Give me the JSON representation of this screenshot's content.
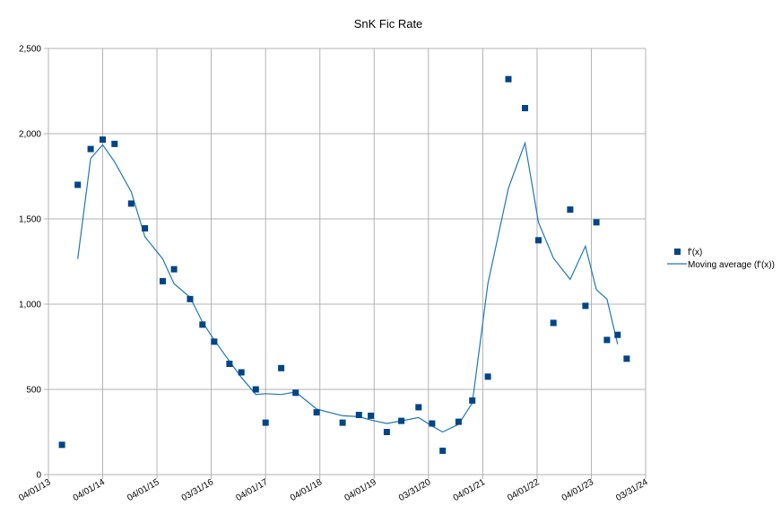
{
  "chart_data": {
    "type": "scatter",
    "title": "SnK Fic Rate",
    "xlabel": "",
    "ylabel": "",
    "x_axis": {
      "kind": "date",
      "min": "2013-04-01",
      "max": "2024-03-31",
      "ticks": [
        {
          "date": "2013-04-01",
          "label": "04/01/13"
        },
        {
          "date": "2014-04-01",
          "label": "04/01/14"
        },
        {
          "date": "2015-04-01",
          "label": "04/01/15"
        },
        {
          "date": "2016-03-31",
          "label": "03/31/16"
        },
        {
          "date": "2017-04-01",
          "label": "04/01/17"
        },
        {
          "date": "2018-04-01",
          "label": "04/01/18"
        },
        {
          "date": "2019-04-01",
          "label": "04/01/19"
        },
        {
          "date": "2020-03-31",
          "label": "03/31/20"
        },
        {
          "date": "2021-04-01",
          "label": "04/01/21"
        },
        {
          "date": "2022-04-01",
          "label": "04/01/22"
        },
        {
          "date": "2023-04-01",
          "label": "04/01/23"
        },
        {
          "date": "2024-03-31",
          "label": "03/31/24"
        }
      ]
    },
    "y_axis": {
      "min": 0,
      "max": 2500,
      "ticks": [
        {
          "value": 0,
          "label": "0"
        },
        {
          "value": 500,
          "label": "500"
        },
        {
          "value": 1000,
          "label": "1,000"
        },
        {
          "value": 1500,
          "label": "1,500"
        },
        {
          "value": 2000,
          "label": "2,000"
        },
        {
          "value": 2500,
          "label": "2,500"
        }
      ]
    },
    "grid": true,
    "legend_position": "right",
    "series": [
      {
        "name": "f'(x)",
        "style": "markers",
        "color": "#004586",
        "points": [
          {
            "x": "2013-07-01",
            "y": 175
          },
          {
            "x": "2013-10-15",
            "y": 1700
          },
          {
            "x": "2014-01-10",
            "y": 1910
          },
          {
            "x": "2014-04-01",
            "y": 1965
          },
          {
            "x": "2014-06-20",
            "y": 1940
          },
          {
            "x": "2014-10-10",
            "y": 1590
          },
          {
            "x": "2015-01-10",
            "y": 1445
          },
          {
            "x": "2015-05-10",
            "y": 1135
          },
          {
            "x": "2015-07-25",
            "y": 1205
          },
          {
            "x": "2015-11-10",
            "y": 1030
          },
          {
            "x": "2016-02-01",
            "y": 880
          },
          {
            "x": "2016-04-20",
            "y": 780
          },
          {
            "x": "2016-08-01",
            "y": 650
          },
          {
            "x": "2016-10-20",
            "y": 600
          },
          {
            "x": "2017-01-25",
            "y": 500
          },
          {
            "x": "2017-04-01",
            "y": 305
          },
          {
            "x": "2017-07-15",
            "y": 625
          },
          {
            "x": "2017-10-20",
            "y": 480
          },
          {
            "x": "2018-03-10",
            "y": 365
          },
          {
            "x": "2018-09-01",
            "y": 305
          },
          {
            "x": "2018-12-20",
            "y": 350
          },
          {
            "x": "2019-03-10",
            "y": 345
          },
          {
            "x": "2019-06-25",
            "y": 250
          },
          {
            "x": "2019-10-01",
            "y": 315
          },
          {
            "x": "2020-01-25",
            "y": 395
          },
          {
            "x": "2020-04-25",
            "y": 300
          },
          {
            "x": "2020-07-05",
            "y": 140
          },
          {
            "x": "2020-10-20",
            "y": 310
          },
          {
            "x": "2021-01-20",
            "y": 435
          },
          {
            "x": "2021-05-05",
            "y": 575
          },
          {
            "x": "2021-09-20",
            "y": 2320
          },
          {
            "x": "2022-01-10",
            "y": 2150
          },
          {
            "x": "2022-04-10",
            "y": 1375
          },
          {
            "x": "2022-07-20",
            "y": 890
          },
          {
            "x": "2022-11-10",
            "y": 1555
          },
          {
            "x": "2023-02-20",
            "y": 990
          },
          {
            "x": "2023-05-05",
            "y": 1480
          },
          {
            "x": "2023-07-15",
            "y": 790
          },
          {
            "x": "2023-09-25",
            "y": 820
          },
          {
            "x": "2023-11-25",
            "y": 680
          }
        ]
      },
      {
        "name": "Moving average (f'(x))",
        "style": "line",
        "color": "#1f78b4",
        "points": [
          {
            "x": "2013-10-15",
            "y": 1265
          },
          {
            "x": "2014-01-10",
            "y": 1855
          },
          {
            "x": "2014-04-01",
            "y": 1935
          },
          {
            "x": "2014-06-20",
            "y": 1835
          },
          {
            "x": "2014-10-10",
            "y": 1660
          },
          {
            "x": "2015-01-10",
            "y": 1395
          },
          {
            "x": "2015-05-10",
            "y": 1265
          },
          {
            "x": "2015-07-25",
            "y": 1120
          },
          {
            "x": "2015-11-10",
            "y": 1040
          },
          {
            "x": "2016-02-01",
            "y": 895
          },
          {
            "x": "2016-04-20",
            "y": 790
          },
          {
            "x": "2016-08-01",
            "y": 665
          },
          {
            "x": "2016-10-20",
            "y": 570
          },
          {
            "x": "2017-01-25",
            "y": 470
          },
          {
            "x": "2017-04-01",
            "y": 475
          },
          {
            "x": "2017-07-15",
            "y": 470
          },
          {
            "x": "2017-10-20",
            "y": 485
          },
          {
            "x": "2018-03-10",
            "y": 385
          },
          {
            "x": "2018-09-01",
            "y": 345
          },
          {
            "x": "2018-12-20",
            "y": 340
          },
          {
            "x": "2019-03-10",
            "y": 320
          },
          {
            "x": "2019-06-25",
            "y": 300
          },
          {
            "x": "2019-10-01",
            "y": 315
          },
          {
            "x": "2020-01-25",
            "y": 335
          },
          {
            "x": "2020-04-25",
            "y": 285
          },
          {
            "x": "2020-07-05",
            "y": 250
          },
          {
            "x": "2020-10-20",
            "y": 295
          },
          {
            "x": "2021-01-20",
            "y": 420
          },
          {
            "x": "2021-05-05",
            "y": 1120
          },
          {
            "x": "2021-09-20",
            "y": 1680
          },
          {
            "x": "2022-01-10",
            "y": 1945
          },
          {
            "x": "2022-04-10",
            "y": 1480
          },
          {
            "x": "2022-07-20",
            "y": 1270
          },
          {
            "x": "2022-11-10",
            "y": 1145
          },
          {
            "x": "2023-02-20",
            "y": 1340
          },
          {
            "x": "2023-05-05",
            "y": 1085
          },
          {
            "x": "2023-07-15",
            "y": 1030
          },
          {
            "x": "2023-09-25",
            "y": 765
          }
        ]
      }
    ]
  }
}
